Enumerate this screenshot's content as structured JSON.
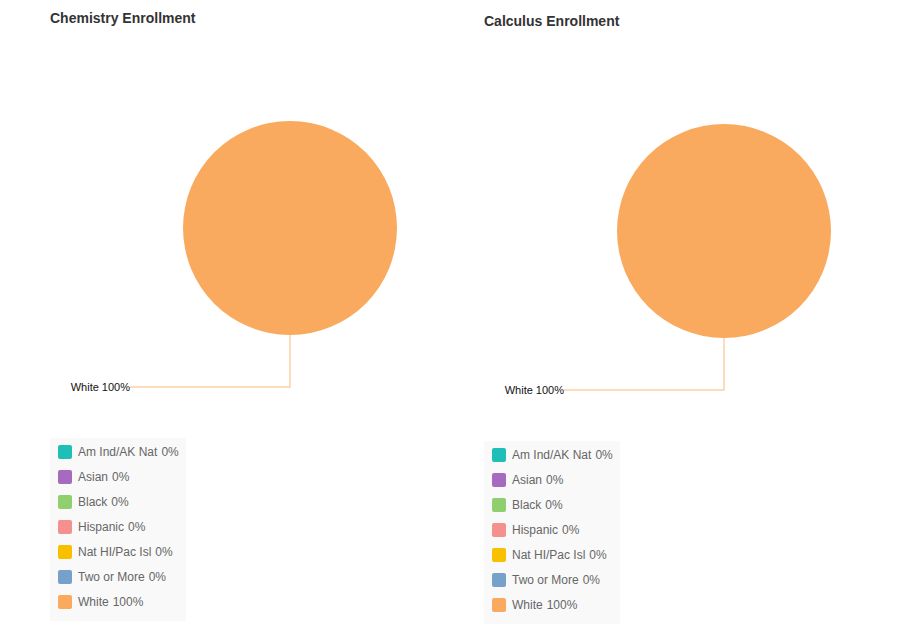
{
  "chart_data": [
    {
      "type": "pie",
      "title": "Chemistry Enrollment",
      "categories": [
        "Am Ind/AK Nat",
        "Asian",
        "Black",
        "Hispanic",
        "Nat HI/Pac Isl",
        "Two or More",
        "White"
      ],
      "values": [
        0,
        0,
        0,
        0,
        0,
        0,
        100
      ],
      "value_labels": [
        "0%",
        "0%",
        "0%",
        "0%",
        "0%",
        "0%",
        "100%"
      ],
      "colors": [
        "#1fbfb8",
        "#a66bbe",
        "#8fcf6e",
        "#f4908e",
        "#f9c000",
        "#76a1cb",
        "#f9aa5e"
      ],
      "legend": "bottom",
      "data_labels": true
    },
    {
      "type": "pie",
      "title": "Calculus Enrollment",
      "categories": [
        "Am Ind/AK Nat",
        "Asian",
        "Black",
        "Hispanic",
        "Nat HI/Pac Isl",
        "Two or More",
        "White"
      ],
      "values": [
        0,
        0,
        0,
        0,
        0,
        0,
        100
      ],
      "value_labels": [
        "0%",
        "0%",
        "0%",
        "0%",
        "0%",
        "0%",
        "100%"
      ],
      "colors": [
        "#1fbfb8",
        "#a66bbe",
        "#8fcf6e",
        "#f4908e",
        "#f9c000",
        "#76a1cb",
        "#f9aa5e"
      ],
      "legend": "bottom",
      "data_labels": true
    }
  ]
}
